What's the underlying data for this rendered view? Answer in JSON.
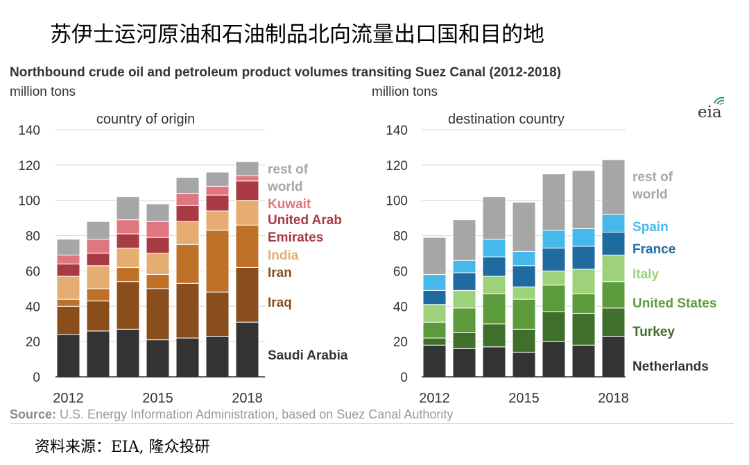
{
  "page": {
    "cn_title": "苏伊士运河原油和石油制品北向流量出口国和目的地",
    "en_title": "Northbound crude oil and petroleum product volumes transiting Suez Canal (2012-2018)",
    "source_label": "Source:",
    "source_text": "U.S. Energy Information Administration, based on Suez Canal Authority",
    "cn_source": "资料来源：EIA, 隆众投研",
    "logo_text": "eia"
  },
  "chart_data": [
    {
      "type": "bar",
      "stacked": true,
      "title": "country of origin",
      "ylabel": "million tons",
      "ylim": [
        0,
        140
      ],
      "yticks": [
        0,
        20,
        40,
        60,
        80,
        100,
        120,
        140
      ],
      "categories": [
        "2012",
        "2013",
        "2014",
        "2015",
        "2016",
        "2017",
        "2018"
      ],
      "xtick_labels": [
        "2012",
        "",
        "",
        "2015",
        "",
        "",
        "2018"
      ],
      "series": [
        {
          "name": "Saudi Arabia",
          "legend": [
            "Saudi Arabia"
          ],
          "color": "#333333",
          "label_color": "#333333",
          "values": [
            24,
            26,
            27,
            21,
            22,
            23,
            31
          ]
        },
        {
          "name": "Iraq",
          "legend": [
            "Iraq"
          ],
          "color": "#8a4e1d",
          "label_color": "#8a4e1d",
          "values": [
            16,
            17,
            27,
            29,
            31,
            25,
            31
          ]
        },
        {
          "name": "Iran",
          "legend": [
            "Iran"
          ],
          "color": "#bf7227",
          "label_color": "#8a4e1d",
          "values": [
            4,
            7,
            8,
            8,
            22,
            35,
            24
          ]
        },
        {
          "name": "India",
          "legend": [
            "India"
          ],
          "color": "#e5ad72",
          "label_color": "#e5ad72",
          "values": [
            13,
            13,
            11,
            12,
            13,
            11,
            14
          ]
        },
        {
          "name": "United Arab Emirates",
          "legend": [
            "United Arab",
            "Emirates"
          ],
          "color": "#a83a43",
          "label_color": "#a83a43",
          "values": [
            7,
            7,
            8,
            9,
            9,
            9,
            11
          ]
        },
        {
          "name": "Kuwait",
          "legend": [
            "Kuwait"
          ],
          "color": "#df7680",
          "label_color": "#df7680",
          "values": [
            5,
            8,
            8,
            9,
            7,
            5,
            3
          ]
        },
        {
          "name": "rest of world",
          "legend": [
            "rest of",
            "world"
          ],
          "color": "#a6a6a6",
          "label_color": "#a6a6a6",
          "values": [
            9,
            10,
            13,
            10,
            9,
            8,
            8
          ]
        }
      ]
    },
    {
      "type": "bar",
      "stacked": true,
      "title": "destination country",
      "ylabel": "million tons",
      "ylim": [
        0,
        140
      ],
      "yticks": [
        0,
        20,
        40,
        60,
        80,
        100,
        120,
        140
      ],
      "categories": [
        "2012",
        "2013",
        "2014",
        "2015",
        "2016",
        "2017",
        "2018"
      ],
      "xtick_labels": [
        "2012",
        "",
        "",
        "2015",
        "",
        "",
        "2018"
      ],
      "series": [
        {
          "name": "Netherlands",
          "legend": [
            "Netherlands"
          ],
          "color": "#333333",
          "label_color": "#333333",
          "values": [
            18,
            16,
            17,
            14,
            20,
            18,
            23
          ]
        },
        {
          "name": "Turkey",
          "legend": [
            "Turkey"
          ],
          "color": "#3f6f2a",
          "label_color": "#3f6f2a",
          "values": [
            4,
            9,
            13,
            13,
            17,
            18,
            16
          ]
        },
        {
          "name": "United States",
          "legend": [
            "United States"
          ],
          "color": "#5c9b3c",
          "label_color": "#5c9b3c",
          "values": [
            9,
            14,
            17,
            17,
            15,
            11,
            15
          ]
        },
        {
          "name": "Italy",
          "legend": [
            "Italy"
          ],
          "color": "#9ed27a",
          "label_color": "#9ed27a",
          "values": [
            10,
            10,
            10,
            7,
            8,
            14,
            15
          ]
        },
        {
          "name": "France",
          "legend": [
            "France"
          ],
          "color": "#1f6a9e",
          "label_color": "#1f6a9e",
          "values": [
            8,
            10,
            11,
            12,
            13,
            13,
            13
          ]
        },
        {
          "name": "Spain",
          "legend": [
            "Spain"
          ],
          "color": "#47b8ec",
          "label_color": "#47b8ec",
          "values": [
            9,
            7,
            10,
            8,
            10,
            10,
            10
          ]
        },
        {
          "name": "rest of world",
          "legend": [
            "rest of",
            "world"
          ],
          "color": "#a6a6a6",
          "label_color": "#a6a6a6",
          "values": [
            21,
            23,
            24,
            28,
            32,
            33,
            31
          ]
        }
      ]
    }
  ]
}
